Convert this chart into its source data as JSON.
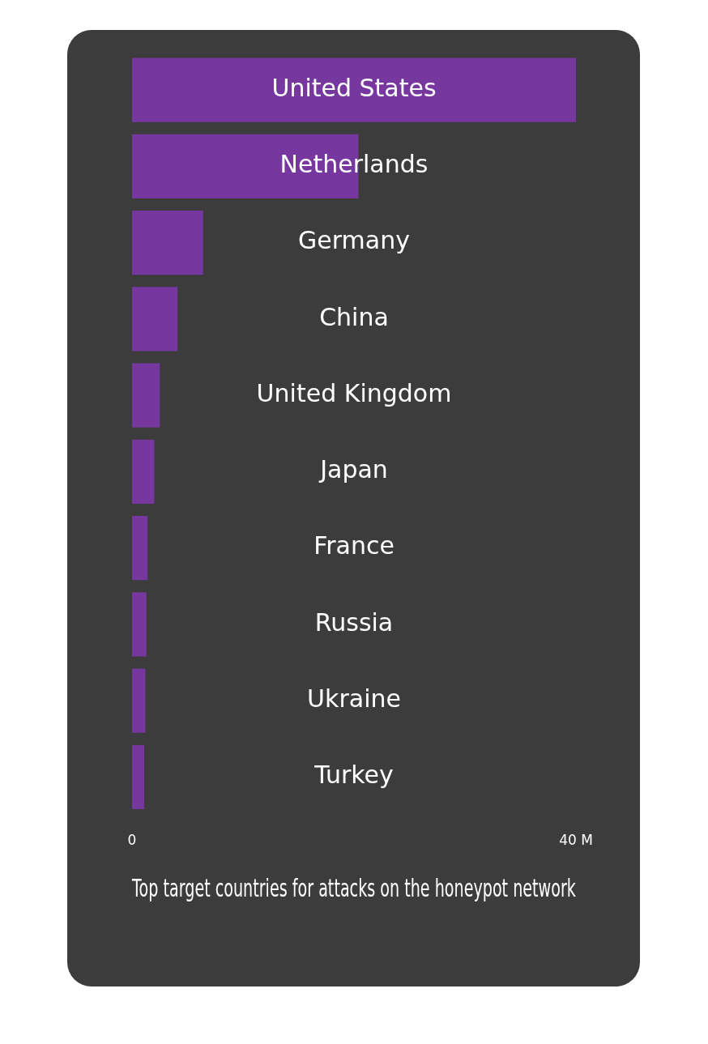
{
  "chart_data": {
    "type": "bar",
    "orientation": "horizontal",
    "title": "Top target countries for attacks on the honeypot network",
    "categories": [
      "United States",
      "Netherlands",
      "Germany",
      "China",
      "United Kingdom",
      "Japan",
      "France",
      "Russia",
      "Ukraine",
      "Turkey"
    ],
    "values": [
      40,
      20.4,
      6.4,
      4.1,
      2.5,
      2.0,
      1.4,
      1.3,
      1.2,
      1.1
    ],
    "color": "#76389e",
    "xlim": [
      0,
      40
    ],
    "xticks": [
      0,
      {
        "value": 40,
        "label": "40 M"
      }
    ],
    "grid": false,
    "legend": false
  }
}
